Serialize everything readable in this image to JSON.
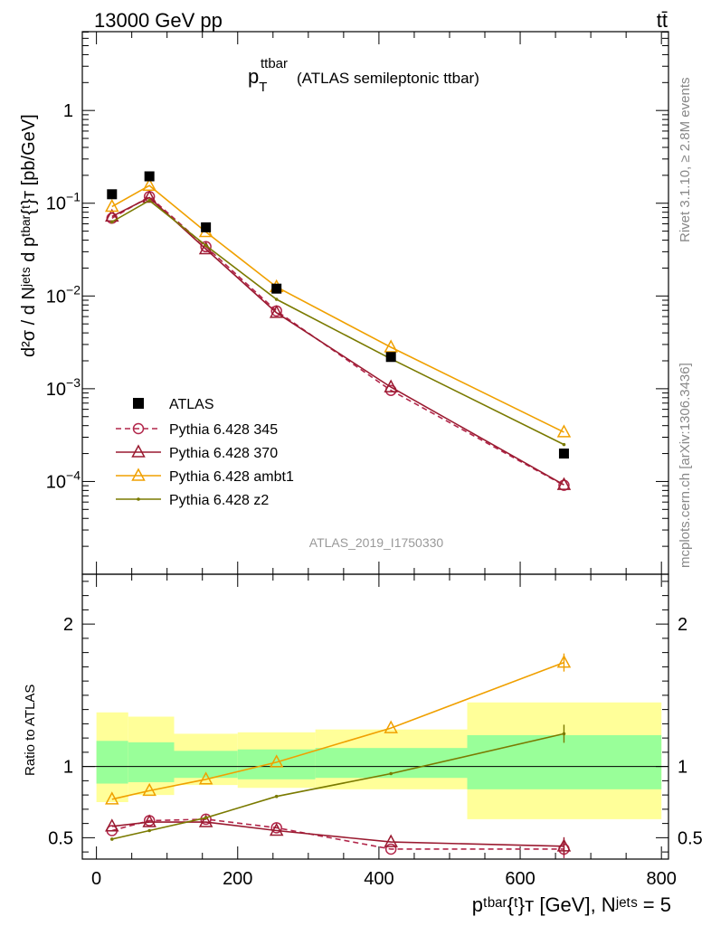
{
  "header": {
    "energy": "13000 GeV pp",
    "process": "tt̄"
  },
  "side_labels": {
    "rivet": "Rivet 3.1.10, ≥ 2.8M events",
    "mcplots": "mcplots.cern.ch [arXiv:1306.3436]"
  },
  "colors": {
    "atlas": "#000000",
    "p345": "#b2264a",
    "p370": "#9a1a30",
    "ambt1": "#f0a000",
    "z2": "#7a7a00",
    "band_inner": "#99ff99",
    "band_outer": "#ffff99"
  },
  "chart_data": {
    "type": "line",
    "title_main": "p",
    "title_sup": "ttbar",
    "title_sub": "T",
    "title_rest": "(ATLAS semileptonic ttbar)",
    "watermark": "ATLAS_2019_I1750330",
    "ylabel_main": "d²σ / d Nʲᵉᵗˢ d pᵗᵇᵃʳ{ᵗ}ᴛ [pb/GeV]",
    "ylabel_ratio": "Ratio to ATLAS",
    "xlabel": "pᵗᵇᵃʳ{ᵗ}ᴛ [GeV], Nʲᵉᵗˢ = 5",
    "xlim": [
      -20,
      810
    ],
    "ylim_main_log10": [
      -5,
      0.85
    ],
    "ylim_ratio": [
      0.35,
      2.35
    ],
    "x_ticks": [
      "0",
      "200",
      "400",
      "600",
      "800"
    ],
    "x_tick_values": [
      0,
      200,
      400,
      600,
      800
    ],
    "y_ticks_main": [
      {
        "mant": "10",
        "exp": "−4",
        "v": -4
      },
      {
        "mant": "10",
        "exp": "−3",
        "v": -3
      },
      {
        "mant": "10",
        "exp": "−2",
        "v": -2
      },
      {
        "mant": "10",
        "exp": "−1",
        "v": -1
      },
      {
        "mant": "1",
        "exp": "",
        "v": 0
      }
    ],
    "y_ticks_ratio": [
      {
        "label": "0.5",
        "v": 0.5
      },
      {
        "label": "1",
        "v": 1
      },
      {
        "label": "2",
        "v": 2
      }
    ],
    "bins": [
      [
        0,
        45
      ],
      [
        45,
        110
      ],
      [
        110,
        200
      ],
      [
        200,
        310
      ],
      [
        310,
        525
      ],
      [
        525,
        800
      ]
    ],
    "x": [
      22,
      75,
      155,
      255,
      417,
      662
    ],
    "band_inner": [
      [
        0.88,
        1.18
      ],
      [
        0.89,
        1.17
      ],
      [
        0.92,
        1.11
      ],
      [
        0.91,
        1.12
      ],
      [
        0.92,
        1.13
      ],
      [
        0.84,
        1.22
      ]
    ],
    "band_outer": [
      [
        0.75,
        1.38
      ],
      [
        0.8,
        1.35
      ],
      [
        0.87,
        1.23
      ],
      [
        0.85,
        1.24
      ],
      [
        0.84,
        1.26
      ],
      [
        0.63,
        1.45
      ]
    ],
    "atlas": [
      0.125,
      0.195,
      0.055,
      0.012,
      0.0022,
      0.0002
    ],
    "series": [
      {
        "name": "Pythia 6.428 345",
        "key": "p345",
        "marker": "circle",
        "dash": true,
        "values": [
          0.069,
          0.118,
          0.034,
          0.0069,
          0.00096,
          9.1e-05
        ],
        "ratio": [
          0.55,
          0.62,
          0.63,
          0.57,
          0.42,
          0.42
        ]
      },
      {
        "name": "Pythia 6.428 370",
        "key": "p370",
        "marker": "triangle",
        "dash": false,
        "values": [
          0.072,
          0.115,
          0.032,
          0.0066,
          0.00104,
          9.2e-05
        ],
        "ratio": [
          0.58,
          0.61,
          0.61,
          0.55,
          0.47,
          0.44
        ]
      },
      {
        "name": "Pythia 6.428 ambt1",
        "key": "ambt1",
        "marker": "triangle",
        "dash": false,
        "values": [
          0.092,
          0.155,
          0.049,
          0.0125,
          0.0028,
          0.00034
        ],
        "ratio": [
          0.77,
          0.83,
          0.91,
          1.03,
          1.27,
          1.73
        ]
      },
      {
        "name": "Pythia 6.428 z2",
        "key": "z2",
        "marker": "dot",
        "dash": false,
        "values": [
          0.063,
          0.107,
          0.035,
          0.0092,
          0.0021,
          0.00025
        ],
        "ratio": [
          0.49,
          0.55,
          0.64,
          0.79,
          0.95,
          1.23
        ]
      }
    ],
    "legend": {
      "atlas_label": "ATLAS",
      "placement": "lower-left"
    }
  }
}
